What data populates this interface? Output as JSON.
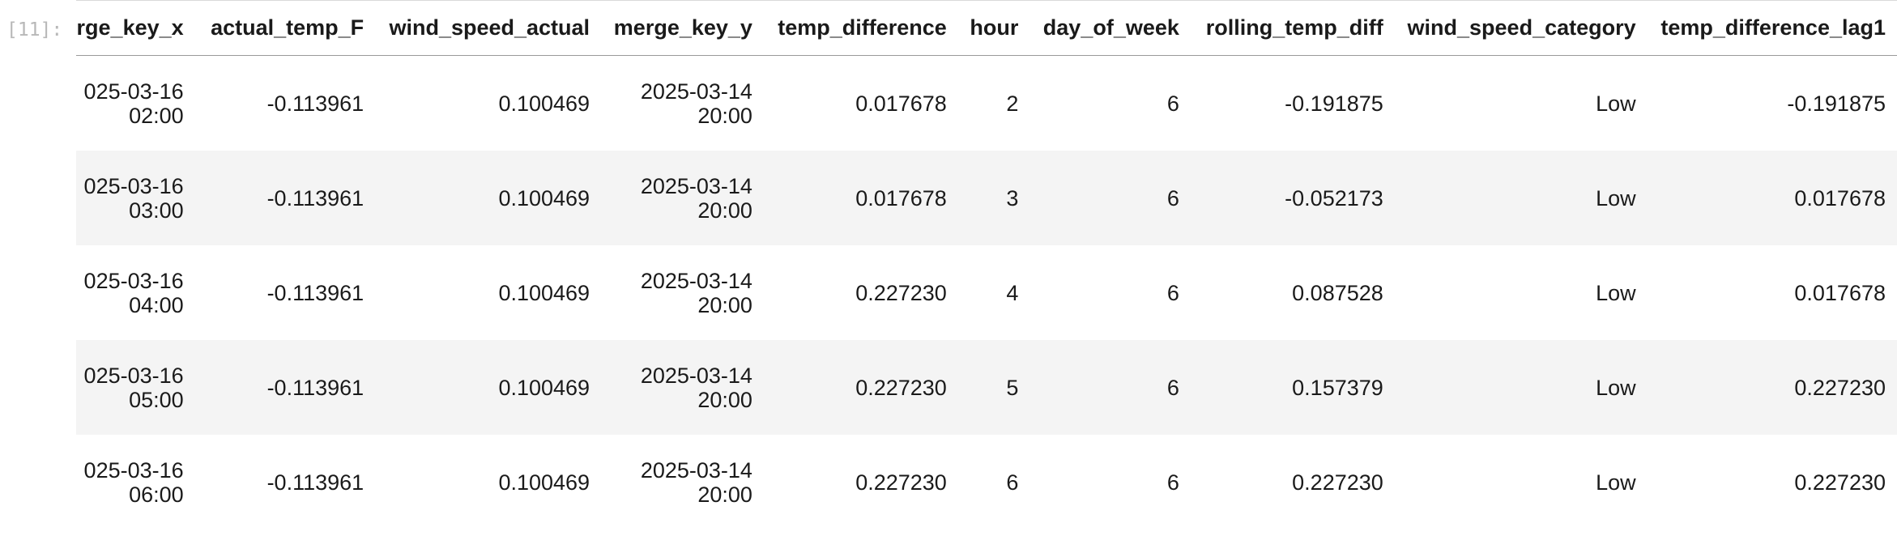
{
  "prompt": {
    "label": "[11]:"
  },
  "table": {
    "headers": [
      "rge_key_x",
      "actual_temp_F",
      "wind_speed_actual",
      "merge_key_y",
      "temp_difference",
      "hour",
      "day_of_week",
      "rolling_temp_diff",
      "wind_speed_category",
      "temp_difference_lag1"
    ],
    "rows": [
      {
        "merge_key_x": [
          "025-03-16",
          "02:00"
        ],
        "actual_temp_F": "-0.113961",
        "wind_speed_actual": "0.100469",
        "merge_key_y": [
          "2025-03-14",
          "20:00"
        ],
        "temp_difference": "0.017678",
        "hour": "2",
        "day_of_week": "6",
        "rolling_temp_diff": "-0.191875",
        "wind_speed_category": "Low",
        "temp_difference_lag1": "-0.191875"
      },
      {
        "merge_key_x": [
          "025-03-16",
          "03:00"
        ],
        "actual_temp_F": "-0.113961",
        "wind_speed_actual": "0.100469",
        "merge_key_y": [
          "2025-03-14",
          "20:00"
        ],
        "temp_difference": "0.017678",
        "hour": "3",
        "day_of_week": "6",
        "rolling_temp_diff": "-0.052173",
        "wind_speed_category": "Low",
        "temp_difference_lag1": "0.017678"
      },
      {
        "merge_key_x": [
          "025-03-16",
          "04:00"
        ],
        "actual_temp_F": "-0.113961",
        "wind_speed_actual": "0.100469",
        "merge_key_y": [
          "2025-03-14",
          "20:00"
        ],
        "temp_difference": "0.227230",
        "hour": "4",
        "day_of_week": "6",
        "rolling_temp_diff": "0.087528",
        "wind_speed_category": "Low",
        "temp_difference_lag1": "0.017678"
      },
      {
        "merge_key_x": [
          "025-03-16",
          "05:00"
        ],
        "actual_temp_F": "-0.113961",
        "wind_speed_actual": "0.100469",
        "merge_key_y": [
          "2025-03-14",
          "20:00"
        ],
        "temp_difference": "0.227230",
        "hour": "5",
        "day_of_week": "6",
        "rolling_temp_diff": "0.157379",
        "wind_speed_category": "Low",
        "temp_difference_lag1": "0.227230"
      },
      {
        "merge_key_x": [
          "025-03-16",
          "06:00"
        ],
        "actual_temp_F": "-0.113961",
        "wind_speed_actual": "0.100469",
        "merge_key_y": [
          "2025-03-14",
          "20:00"
        ],
        "temp_difference": "0.227230",
        "hour": "6",
        "day_of_week": "6",
        "rolling_temp_diff": "0.227230",
        "wind_speed_category": "Low",
        "temp_difference_lag1": "0.227230"
      }
    ]
  }
}
